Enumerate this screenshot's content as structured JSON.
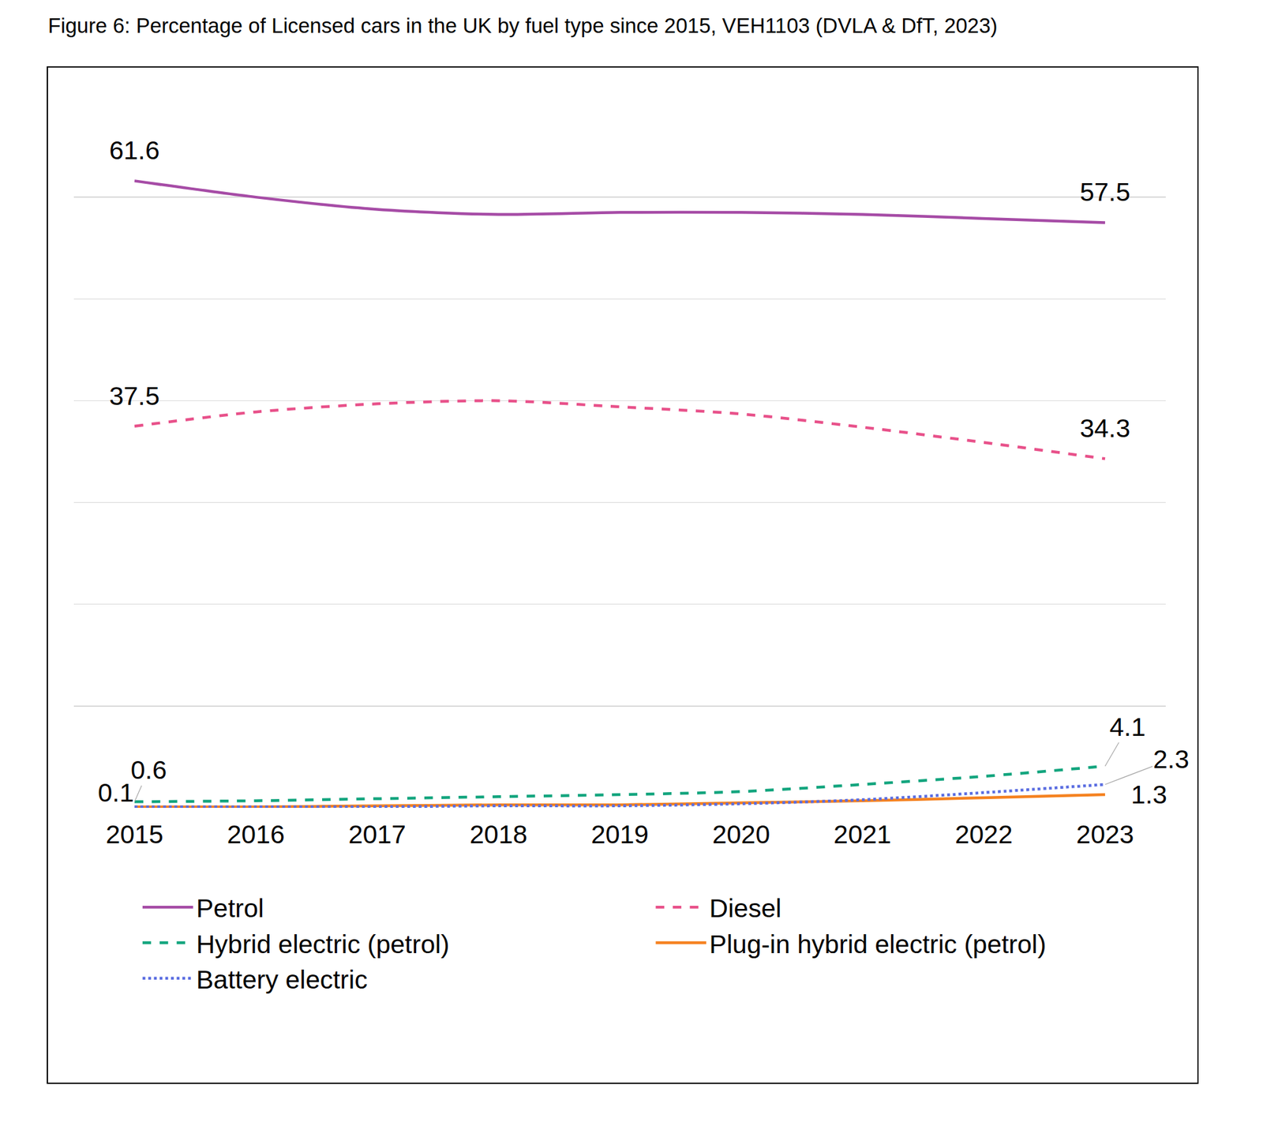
{
  "chart_data": {
    "type": "line",
    "title": "Figure 6: Percentage of Licensed cars in the UK by fuel type since 2015, VEH1103 (DVLA & DfT, 2023)",
    "categories": [
      "2015",
      "2016",
      "2017",
      "2018",
      "2019",
      "2020",
      "2021",
      "2022",
      "2023"
    ],
    "ylim": [
      0,
      70
    ],
    "yticks": [
      0,
      10,
      20,
      30,
      40,
      50,
      60,
      70
    ],
    "grid": true,
    "legend": "bottom",
    "tick_labels": "x",
    "data_labels": true,
    "series": [
      {
        "name": "Petrol",
        "color": "#a64ca6",
        "line_style": "solid",
        "values": [
          61.6,
          60.0,
          58.8,
          58.3,
          58.5,
          58.5,
          58.3,
          57.9,
          57.5
        ],
        "value_labels": [
          "61.6",
          null,
          null,
          null,
          null,
          null,
          null,
          null,
          "57.5"
        ]
      },
      {
        "name": "Diesel",
        "color": "#e8518a",
        "line_style": "dash",
        "values": [
          37.5,
          38.9,
          39.7,
          40.0,
          39.4,
          38.7,
          37.4,
          35.9,
          34.3
        ],
        "value_labels": [
          "37.5",
          null,
          null,
          null,
          null,
          null,
          null,
          null,
          "34.3"
        ]
      },
      {
        "name": "Hybrid electric (petrol)",
        "color": "#13a57e",
        "line_style": "dash",
        "values": [
          0.6,
          0.7,
          0.9,
          1.1,
          1.3,
          1.6,
          2.3,
          3.1,
          4.1
        ],
        "value_labels": [
          "0.6",
          null,
          null,
          null,
          null,
          null,
          null,
          null,
          "4.1"
        ]
      },
      {
        "name": "Plug-in hybrid electric (petrol)",
        "color": "#f58220",
        "line_style": "solid",
        "values": [
          0.1,
          0.1,
          0.2,
          0.3,
          0.3,
          0.5,
          0.7,
          1.0,
          1.3
        ],
        "value_labels": [
          null,
          null,
          null,
          null,
          null,
          null,
          null,
          null,
          "1.3"
        ]
      },
      {
        "name": "Battery electric",
        "color": "#5b6ee1",
        "line_style": "dot",
        "values": [
          0.1,
          0.1,
          0.1,
          0.2,
          0.2,
          0.4,
          0.8,
          1.5,
          2.3
        ],
        "value_labels": [
          "0.1",
          null,
          null,
          null,
          null,
          null,
          null,
          null,
          "2.3"
        ]
      }
    ]
  }
}
